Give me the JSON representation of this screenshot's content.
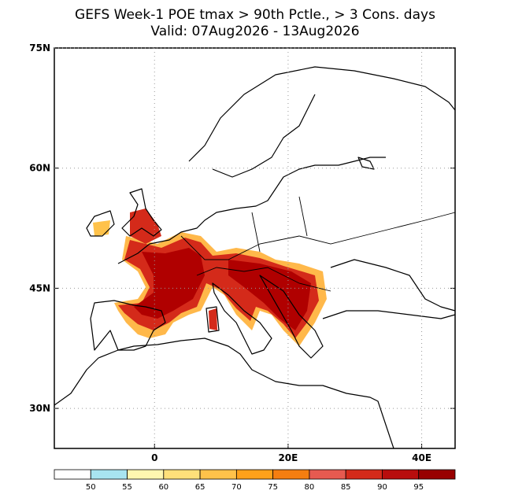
{
  "header": {
    "title": "GEFS Week-1 POE tmax > 90th Pctle., > 3 Cons. days",
    "subtitle": "Valid: 07Aug2026 - 13Aug2026"
  },
  "map": {
    "lon_range": [
      -15,
      45
    ],
    "lat_range": [
      25,
      75
    ],
    "lat_ticks": [
      {
        "value": 75,
        "label": "75N"
      },
      {
        "value": 60,
        "label": "60N"
      },
      {
        "value": 45,
        "label": "45N"
      },
      {
        "value": 30,
        "label": "30N"
      }
    ],
    "lon_ticks": [
      {
        "value": 0,
        "label": "0"
      },
      {
        "value": 20,
        "label": "20E"
      },
      {
        "value": 40,
        "label": "40E"
      }
    ]
  },
  "colorbar": {
    "levels": [
      50,
      55,
      60,
      65,
      70,
      75,
      80,
      85,
      90,
      95
    ],
    "colors": [
      "#ffffff",
      "#a8e4f0",
      "#fff7b0",
      "#ffe07a",
      "#ffc24a",
      "#ffa11a",
      "#f57e10",
      "#e65a50",
      "#d42a1a",
      "#b80d0d",
      "#980000"
    ]
  }
}
